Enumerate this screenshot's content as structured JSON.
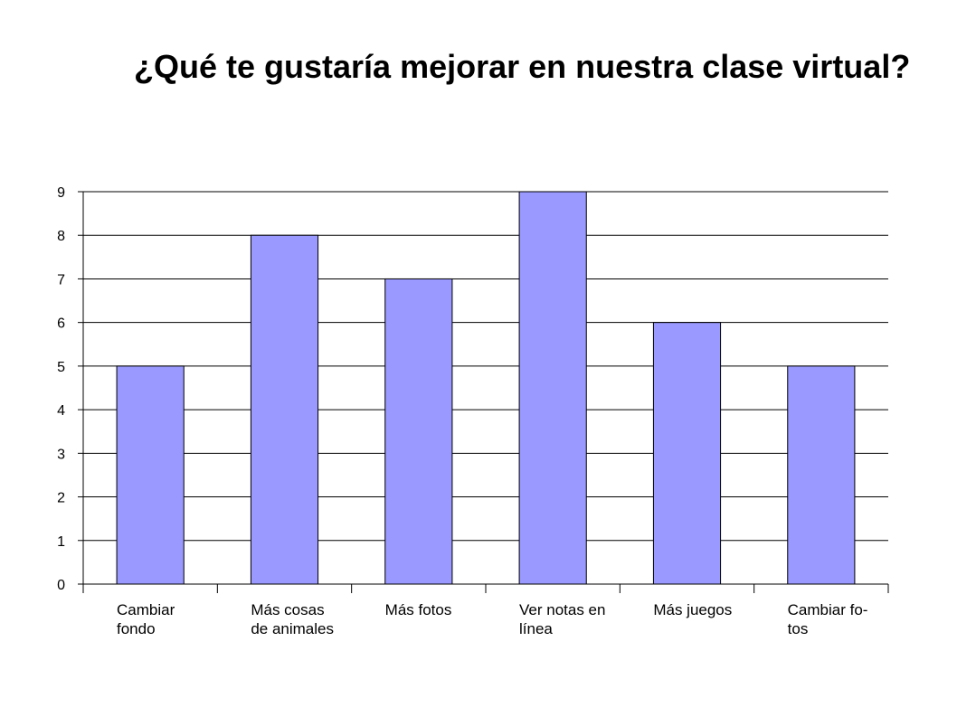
{
  "chart_data": {
    "type": "bar",
    "title": "¿Qué te gustaría mejorar en nuestra clase virtual?",
    "categories": [
      [
        "Cambiar",
        "fondo"
      ],
      [
        "Más cosas",
        "de animales"
      ],
      [
        "Más fotos"
      ],
      [
        "Ver notas en",
        "línea"
      ],
      [
        "Más juegos"
      ],
      [
        "Cambiar fo-",
        "tos"
      ]
    ],
    "values": [
      5,
      8,
      7,
      9,
      6,
      5
    ],
    "ylim": [
      0,
      9
    ],
    "yticks": [
      "0",
      "1",
      "2",
      "3",
      "4",
      "5",
      "6",
      "7",
      "8",
      "9"
    ],
    "xlabel": "",
    "ylabel": "",
    "grid": true,
    "legend": "none",
    "colors": {
      "bar": "#9999ff",
      "bar_edge": "#000000",
      "grid": "#000000"
    }
  }
}
